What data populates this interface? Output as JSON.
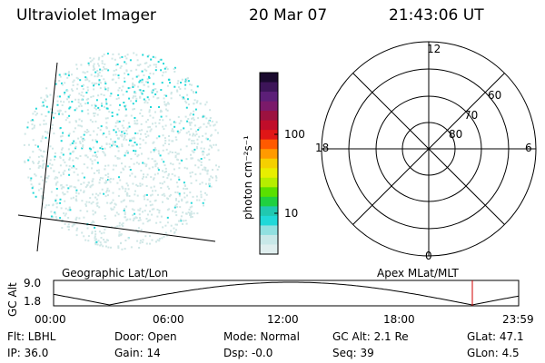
{
  "header": {
    "instrument": "Ultraviolet Imager",
    "date": "20 Mar 07",
    "time": "21:43:06 UT"
  },
  "image_panel": {
    "dot_color_bright": "#22d8d8",
    "dot_color_dim": "#cfe7e6"
  },
  "colorbar": {
    "label": "photon cm⁻²s⁻¹",
    "ticks": [
      "100",
      "10"
    ],
    "colors": [
      "#1a0a2e",
      "#3d1559",
      "#5c1f78",
      "#7b1a6a",
      "#9c1240",
      "#c00d2a",
      "#e01616",
      "#ff5a00",
      "#ff9a00",
      "#f5d000",
      "#e8ee00",
      "#b6ee00",
      "#5ae000",
      "#20d040",
      "#20c8b0",
      "#20d8d8",
      "#90e0e0",
      "#c8e8e8",
      "#dfeeee"
    ]
  },
  "polar_plot": {
    "mlt_labels": {
      "top": "12",
      "left": "18",
      "right": "6",
      "bottom": "0"
    },
    "lat_labels": [
      "60",
      "70",
      "80"
    ]
  },
  "orbit_plot": {
    "left_title": "Geographic Lat/Lon",
    "right_title": "Apex MLat/MLT",
    "y_axis_label": "GC Alt",
    "y_ticks": [
      "9.0",
      "1.8"
    ],
    "x_ticks": [
      "00:00",
      "06:00",
      "12:00",
      "18:00",
      "23:59"
    ],
    "marker_color": "#d00000"
  },
  "status": {
    "filter": "Flt: LBHL",
    "ip": "IP: 36.0",
    "door": "Door: Open",
    "gain": "Gain: 14",
    "mode": "Mode: Normal",
    "dsp": "Dsp:   -0.0",
    "gc_alt": "GC Alt: 2.1 Re",
    "seq": "Seq: 39",
    "glat": "GLat:  47.1",
    "glon": "GLon:   4.5"
  }
}
